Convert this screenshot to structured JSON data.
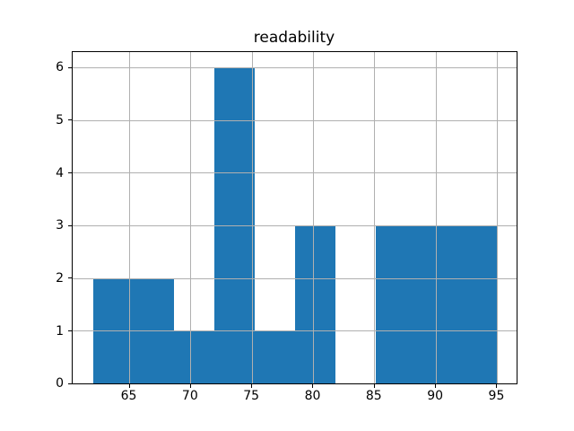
{
  "chart_data": {
    "type": "histogram",
    "title": "readability",
    "xlabel": "",
    "ylabel": "",
    "bin_edges": [
      62,
      65.3,
      68.6,
      71.9,
      75.2,
      78.5,
      81.8,
      85.1,
      88.4,
      91.7,
      95
    ],
    "counts": [
      2,
      2,
      1,
      6,
      1,
      3,
      0,
      3,
      3,
      3
    ],
    "xticks": [
      65,
      70,
      75,
      80,
      85,
      90,
      95
    ],
    "yticks": [
      0,
      1,
      2,
      3,
      4,
      5,
      6
    ],
    "xlim": [
      60.35,
      96.65
    ],
    "ylim": [
      0,
      6.3
    ],
    "bar_color": "#1f77b4",
    "grid": "on",
    "grid_above_bars": true,
    "grid_color": "#b0b0b0",
    "axis_color": "#000000",
    "text_color": "#000000",
    "background_color": "#ffffff",
    "legend": "none"
  }
}
